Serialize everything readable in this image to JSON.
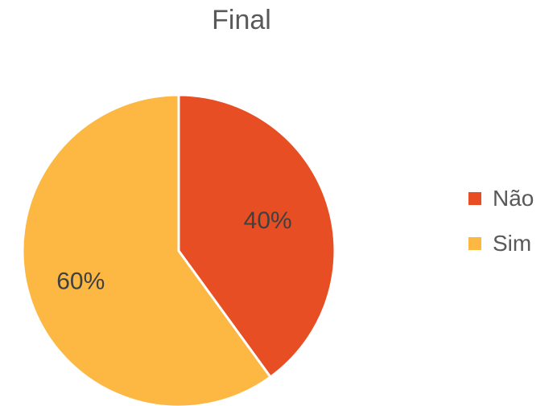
{
  "chart_data": {
    "type": "pie",
    "title": "Final",
    "categories": [
      "Não",
      "Sim"
    ],
    "values": [
      40,
      60
    ],
    "data_labels": [
      "40%",
      "60%"
    ],
    "colors": [
      "#E84E23",
      "#FDB843"
    ],
    "legend_position": "right"
  }
}
